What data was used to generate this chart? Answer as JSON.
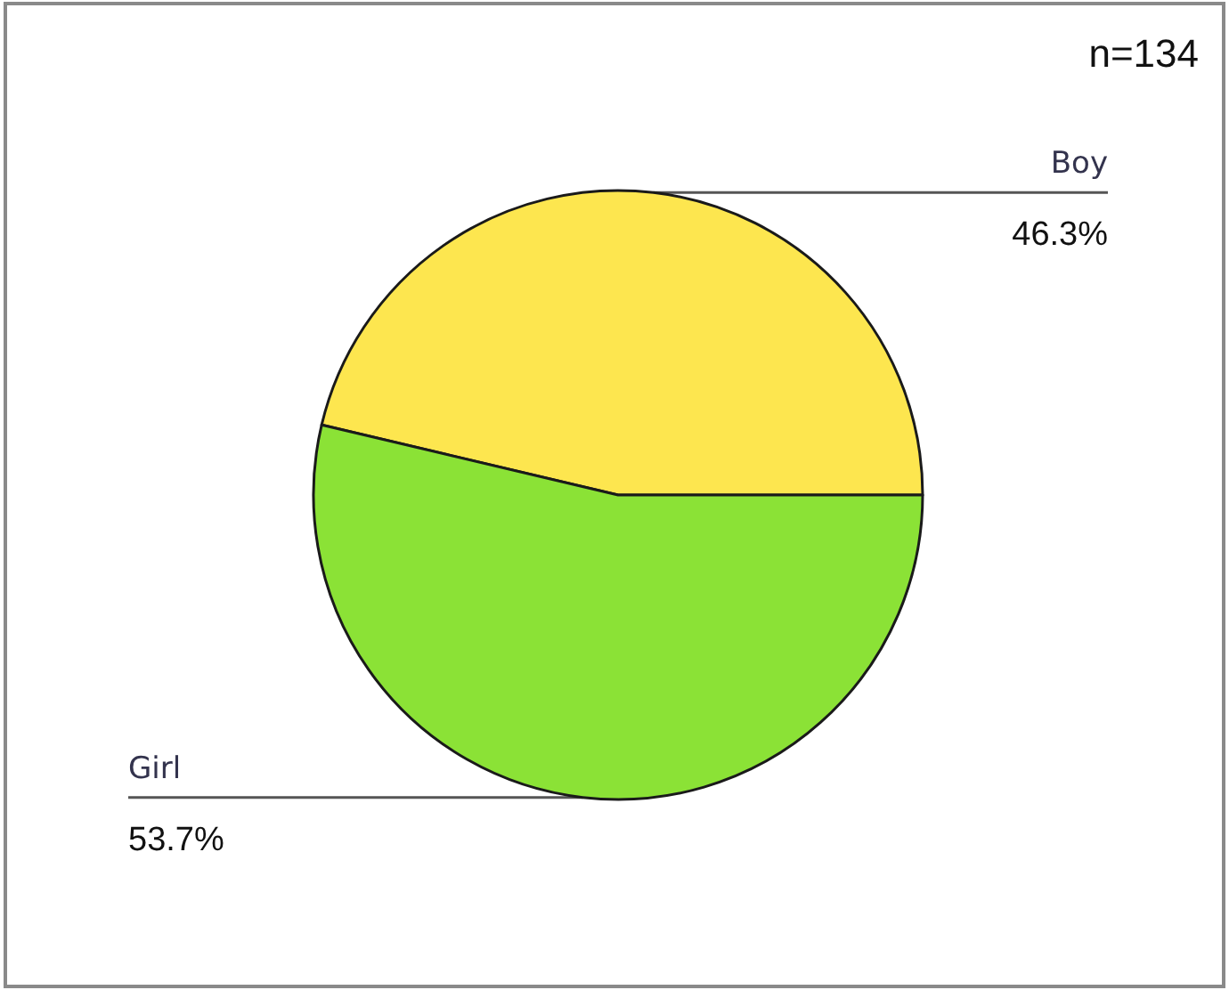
{
  "chart_data": {
    "type": "pie",
    "categories": [
      "Boy",
      "Girl"
    ],
    "values": [
      46.3,
      53.7
    ],
    "colors": [
      "#fde64f",
      "#8be236"
    ],
    "value_labels": [
      "46.3%",
      "53.7%"
    ],
    "annotations": [
      "n=134"
    ]
  }
}
